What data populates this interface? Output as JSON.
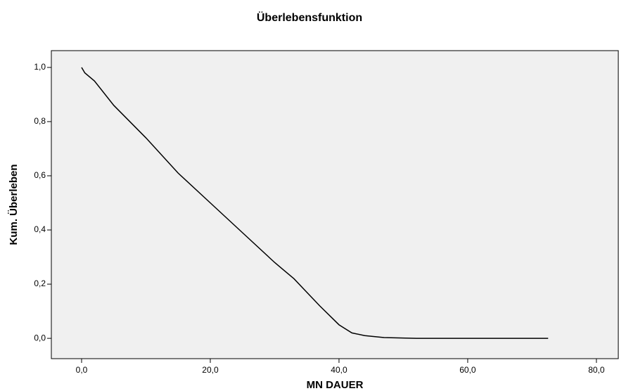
{
  "chart_data": {
    "type": "line",
    "title": "Überlebensfunktion",
    "xlabel": "MN  DAUER",
    "ylabel": "Kum. Überleben",
    "x": [
      0,
      0.5,
      2,
      5,
      10,
      15,
      20,
      25,
      30,
      33,
      35,
      37,
      40,
      42,
      44,
      47,
      52,
      72.5
    ],
    "series": [
      {
        "name": "Überlebensfunktion",
        "color": "#000000",
        "values": [
          1.0,
          0.98,
          0.95,
          0.86,
          0.74,
          0.61,
          0.5,
          0.39,
          0.28,
          0.22,
          0.17,
          0.12,
          0.05,
          0.02,
          0.01,
          0.003,
          0.0,
          0.0
        ]
      }
    ],
    "xlim": [
      -4.7,
      83.4
    ],
    "xticks": [
      {
        "value": 0,
        "label": "0,0"
      },
      {
        "value": 20,
        "label": "20,0"
      },
      {
        "value": 40,
        "label": "40,0"
      },
      {
        "value": 60,
        "label": "60,0"
      },
      {
        "value": 80,
        "label": "80,0"
      }
    ],
    "ylim": [
      -0.075,
      1.062
    ],
    "yticks": [
      {
        "value": 0,
        "label": "0,0"
      },
      {
        "value": 0.2,
        "label": "0,2"
      },
      {
        "value": 0.4,
        "label": "0,4"
      },
      {
        "value": 0.6,
        "label": "0,6"
      },
      {
        "value": 0.8,
        "label": "0,8"
      },
      {
        "value": 1.0,
        "label": "1,0"
      }
    ],
    "grid": false
  }
}
